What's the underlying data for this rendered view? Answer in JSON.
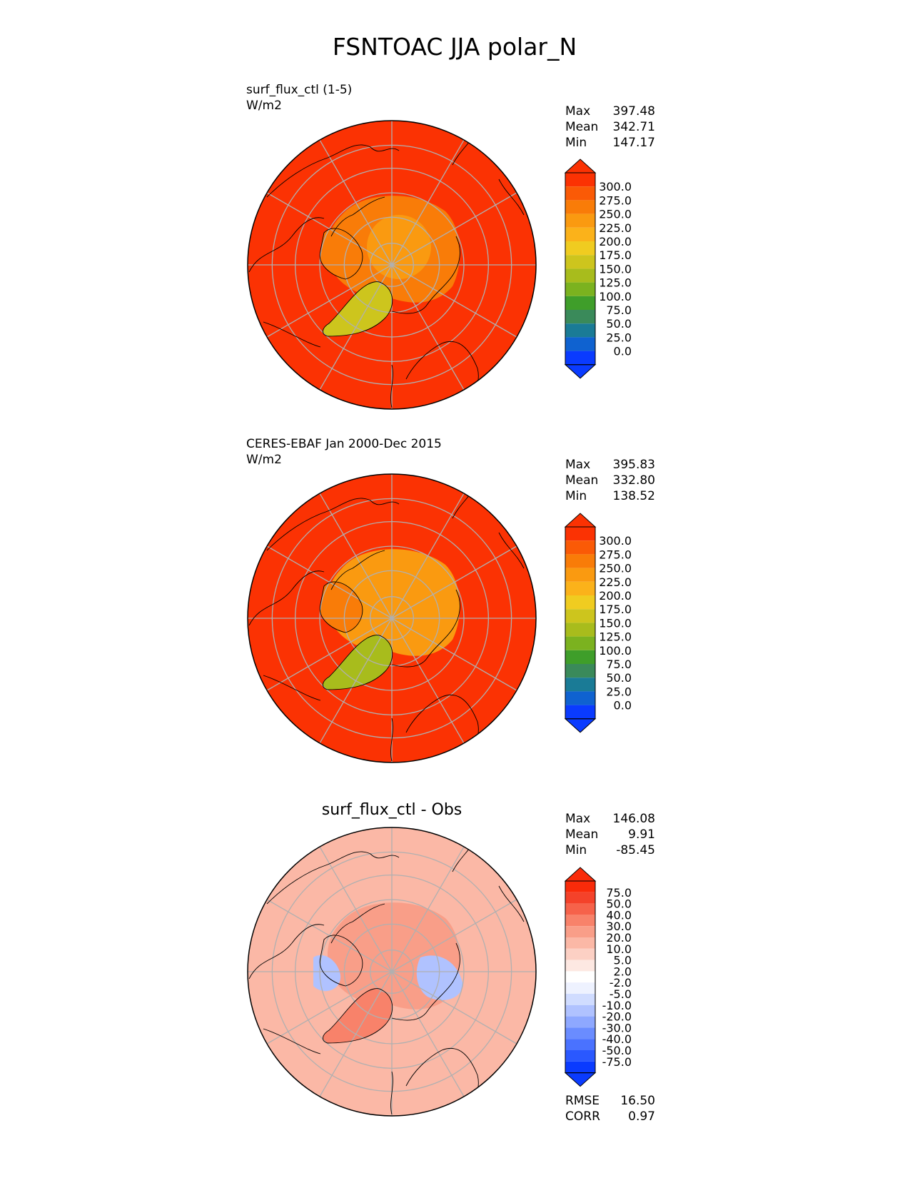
{
  "figure_title": "FSNTOAC JJA polar_N",
  "colors": {
    "grid": "#b0b0b0",
    "coast": "#000000",
    "abs_levels": [
      "#0a3bff",
      "#0f62d0",
      "#1a7b96",
      "#3a8a5a",
      "#3f9e2a",
      "#7bb21f",
      "#a8bc1c",
      "#cdc51d",
      "#f0cc20",
      "#fbb21a",
      "#fa9a10",
      "#f97c08",
      "#fa5a06",
      "#fb3203"
    ],
    "diff_levels": [
      "#0a3bff",
      "#2a58ff",
      "#4a72ff",
      "#6a8cff",
      "#8ea8ff",
      "#b0c2ff",
      "#d0dcff",
      "#eef2ff",
      "#ffffff",
      "#fde8e2",
      "#fcd0c4",
      "#fbb8a6",
      "#f99e88",
      "#f8826a",
      "#f6624a",
      "#f4422a",
      "#f92b0a"
    ]
  },
  "chart_data": [
    {
      "type": "heatmap",
      "title": "surf_flux_ctl (1-5)",
      "units": "W/m2",
      "stats": [
        [
          "Max",
          "397.48"
        ],
        [
          "Mean",
          "342.71"
        ],
        [
          "Min",
          "147.17"
        ]
      ],
      "colorbar_ticks": [
        "300.0",
        "275.0",
        "250.0",
        "225.0",
        "200.0",
        "175.0",
        "150.0",
        "125.0",
        "100.0",
        "75.0",
        "50.0",
        "25.0",
        "0.0"
      ],
      "field": {
        "background": 320,
        "arctic_ocean": 255,
        "pole": 245,
        "greenland": 160,
        "archipelago": 265
      }
    },
    {
      "type": "heatmap",
      "title": "CERES-EBAF Jan 2000-Dec 2015",
      "units": "W/m2",
      "stats": [
        [
          "Max",
          "395.83"
        ],
        [
          "Mean",
          "332.80"
        ],
        [
          "Min",
          "138.52"
        ]
      ],
      "colorbar_ticks": [
        "300.0",
        "275.0",
        "250.0",
        "225.0",
        "200.0",
        "175.0",
        "150.0",
        "125.0",
        "100.0",
        "75.0",
        "50.0",
        "25.0",
        "0.0"
      ],
      "field": {
        "background": 320,
        "arctic_ocean": 235,
        "pole": 225,
        "greenland": 145,
        "archipelago": 255
      }
    },
    {
      "type": "heatmap",
      "title": "surf_flux_ctl - Obs",
      "units": "",
      "stats": [
        [
          "Max",
          "146.08"
        ],
        [
          "Mean",
          "9.91"
        ],
        [
          "Min",
          "-85.45"
        ]
      ],
      "colorbar_ticks": [
        "75.0",
        "50.0",
        "40.0",
        "30.0",
        "20.0",
        "10.0",
        "5.0",
        "2.0",
        "-2.0",
        "-5.0",
        "-10.0",
        "-20.0",
        "-30.0",
        "-40.0",
        "-50.0",
        "-75.0"
      ],
      "metrics": [
        [
          "RMSE",
          "16.50"
        ],
        [
          "CORR",
          "0.97"
        ]
      ],
      "field": {
        "background": 12,
        "arctic_ocean": 22,
        "greenland": 35,
        "negative_region": -12
      }
    }
  ]
}
